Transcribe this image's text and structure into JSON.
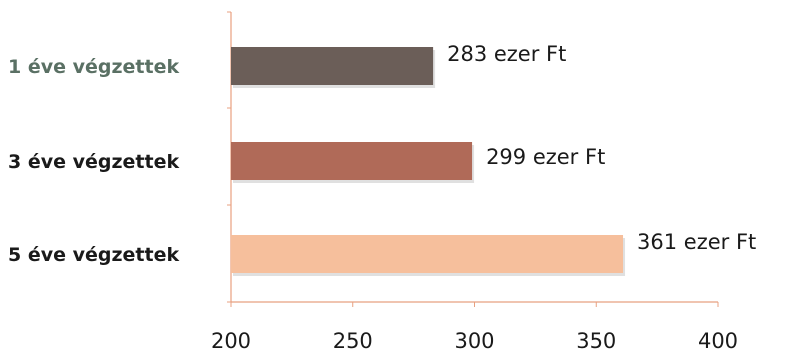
{
  "chart_data": {
    "type": "bar",
    "orientation": "horizontal",
    "title": "",
    "xlabel": "",
    "ylabel": "",
    "xlim": [
      200,
      400
    ],
    "x_ticks": [
      "200",
      "250",
      "300",
      "350",
      "400"
    ],
    "grid": false,
    "legend": "none",
    "categories": [
      "1 éve végzettek",
      "3 éve végzettek",
      "5 éve végzettek"
    ],
    "values": [
      283,
      299,
      361
    ],
    "data_labels": [
      "283 ezer Ft",
      "299 ezer Ft",
      "361 ezer Ft"
    ],
    "bar_colors": [
      "#6b5e58",
      "#b06a58",
      "#f6bf9c"
    ],
    "category_label_colors": [
      "#5a7064",
      "#1a1a1a",
      "#1a1a1a"
    ],
    "axis_color": "#e8a080"
  }
}
